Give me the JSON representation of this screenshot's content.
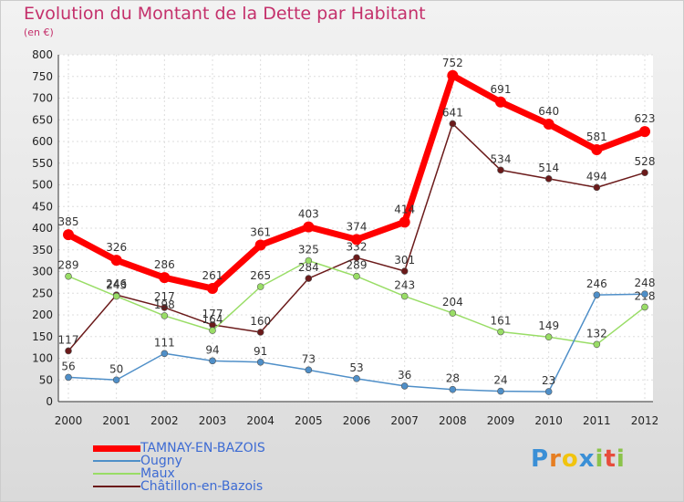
{
  "header": {
    "title": "Evolution du Montant de la Dette par Habitant",
    "subtitle": "(en €)"
  },
  "brand": {
    "letters": [
      "P",
      "r",
      "o",
      "x",
      "i",
      "t",
      "i"
    ],
    "colors": [
      "#3a8fd6",
      "#e67e22",
      "#f1c40f",
      "#3a8fd6",
      "#8bc34a",
      "#e74c3c",
      "#8bc34a"
    ]
  },
  "chart_data": {
    "type": "line",
    "title": "Evolution du Montant de la Dette par Habitant",
    "subtitle": "(en €)",
    "xlabel": "",
    "ylabel": "",
    "x": [
      "2000",
      "2001",
      "2002",
      "2003",
      "2004",
      "2005",
      "2006",
      "2007",
      "2008",
      "2009",
      "2010",
      "2011",
      "2012"
    ],
    "y_ticks": [
      "0",
      "50",
      "100",
      "150",
      "200",
      "250",
      "300",
      "350",
      "400",
      "450",
      "500",
      "550",
      "600",
      "650",
      "700",
      "750",
      "800"
    ],
    "ylim": [
      0,
      800
    ],
    "grid": true,
    "legend_position": "bottom-left",
    "series": [
      {
        "name": "TAMNAY-EN-BAZOIS",
        "color": "#ff0000",
        "values": [
          385,
          326,
          286,
          261,
          361,
          403,
          374,
          414,
          752,
          691,
          640,
          581,
          623
        ]
      },
      {
        "name": "Ougny",
        "color": "#4f8fc8",
        "values": [
          56,
          50,
          111,
          94,
          91,
          73,
          53,
          36,
          28,
          24,
          23,
          246,
          248
        ]
      },
      {
        "name": "Maux",
        "color": "#99dd66",
        "values": [
          289,
          243,
          198,
          164,
          265,
          325,
          289,
          243,
          204,
          161,
          149,
          132,
          218
        ]
      },
      {
        "name": "Châtillon-en-Bazois",
        "color": "#6b1a1a",
        "values": [
          117,
          246,
          217,
          177,
          160,
          284,
          332,
          301,
          641,
          534,
          514,
          494,
          528
        ]
      }
    ]
  }
}
